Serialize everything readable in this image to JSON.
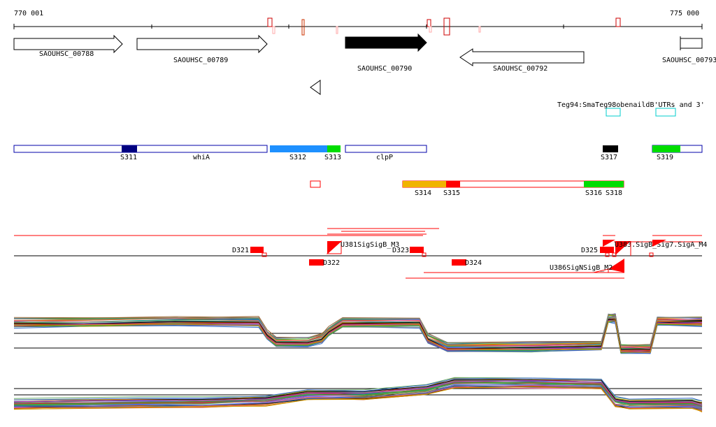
{
  "coordinates": {
    "start": "770 001",
    "end": "775 000"
  },
  "genes": [
    {
      "id": "SAOUHSC_00788",
      "label": "SAOUHSC_00788",
      "strand": "+",
      "highlighted": false
    },
    {
      "id": "SAOUHSC_00789",
      "label": "SAOUHSC_00789",
      "strand": "+",
      "highlighted": false
    },
    {
      "id": "SAOUHSC_00790",
      "label": "SAOUHSC_00790",
      "strand": "+",
      "highlighted": true
    },
    {
      "id": "SAOUHSC_00792",
      "label": "SAOUHSC_00792",
      "strand": "-",
      "highlighted": false
    },
    {
      "id": "SAOUHSC_00793",
      "label": "SAOUHSC_00793",
      "strand": "+",
      "highlighted": false
    }
  ],
  "utr_label": "Teg94:SmaTeg98obenaildB'UTRs and 3'",
  "operons_row1": [
    {
      "label": "S311",
      "color": "#000080"
    },
    {
      "label": "whiA",
      "color": "#ffffff"
    },
    {
      "label": "S312",
      "color": "#1e90ff"
    },
    {
      "label": "S313",
      "color": "#00dd00"
    },
    {
      "label": "clpP",
      "color": "#ffffff"
    },
    {
      "label": "S317",
      "color": "#000000"
    },
    {
      "label": "S319",
      "color": "#00dd00"
    }
  ],
  "operons_row2": [
    {
      "label": "S314",
      "color": "#f0b400"
    },
    {
      "label": "S315",
      "color": "#ff0000"
    },
    {
      "label": "S316",
      "color": "#00dd00"
    },
    {
      "label": "S318",
      "color": "#00dd00"
    }
  ],
  "segments": {
    "D321": "D321",
    "D322": "D322",
    "D323": "D323",
    "D324": "D324",
    "D325": "D325",
    "U381": "U381SigSigB_M3",
    "U383": "U383.SigB_Sig7.SigA_M4",
    "U386": "U386SigNSigB_M2"
  },
  "colors": {
    "red": "#ff0000",
    "blue": "#0000aa",
    "cyan": "#00cccc"
  }
}
